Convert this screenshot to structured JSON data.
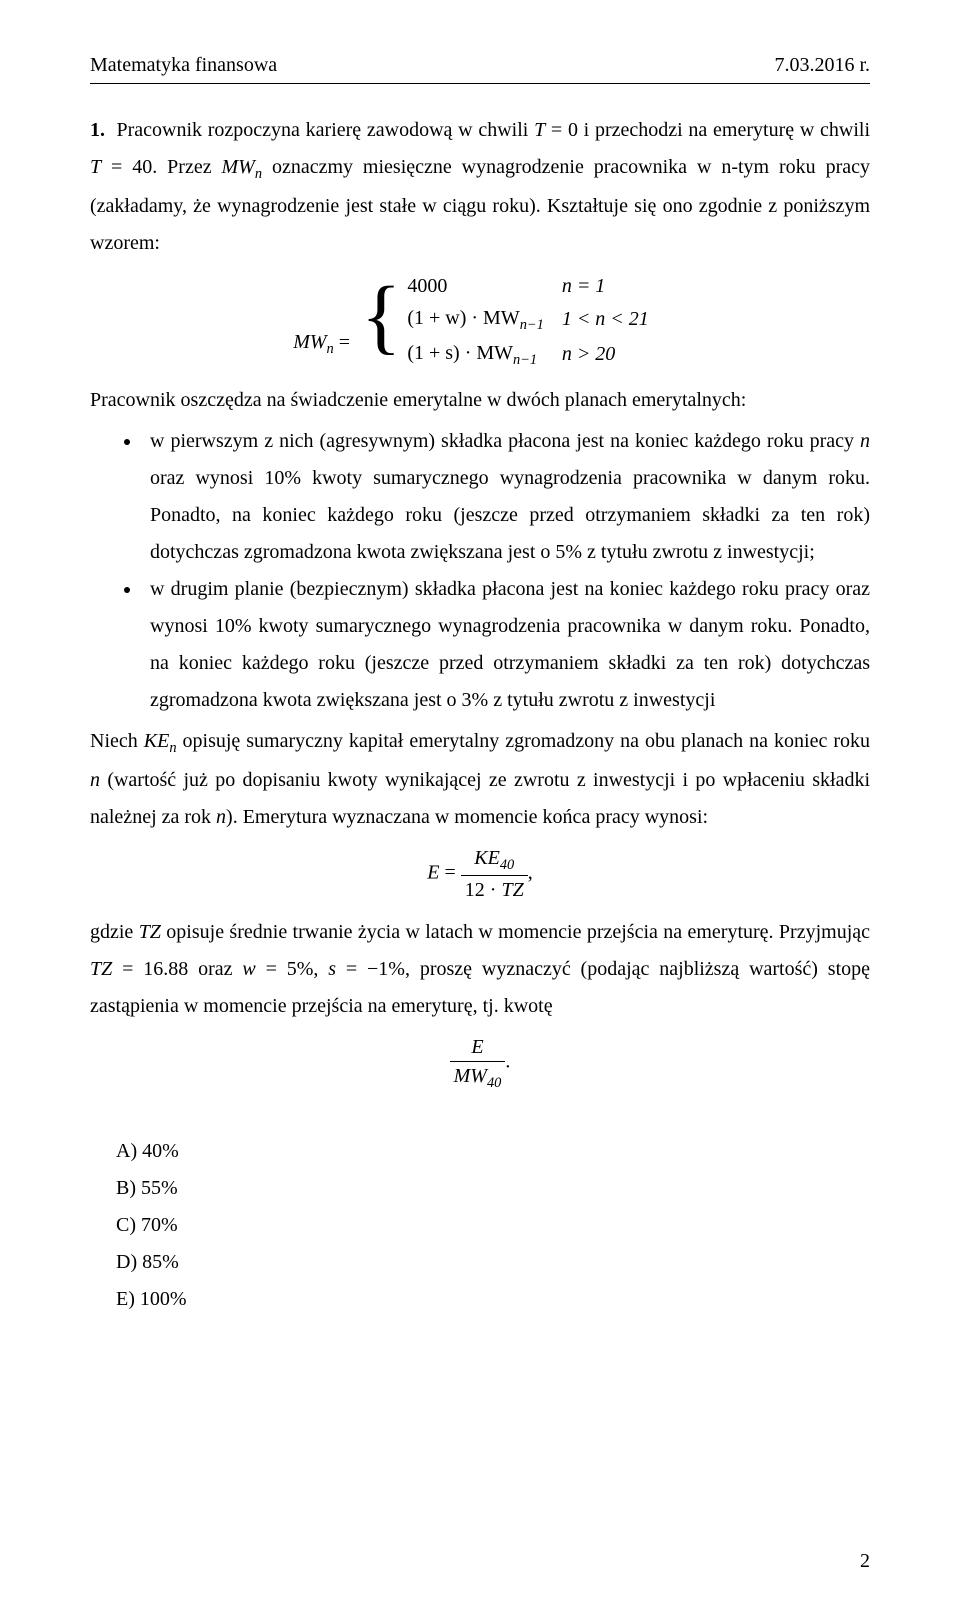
{
  "header": {
    "left": "Matematyka finansowa",
    "right": "7.03.2016 r."
  },
  "problem_number": "1.",
  "p1a": "Pracownik rozpoczyna karierę zawodową w chwili ",
  "p1_eq1_lhs": "T",
  "p1_eq1_rhs": " = 0",
  "p1b": " i przechodzi na emeryturę w chwili ",
  "p1_eq2_lhs": "T",
  "p1_eq2_rhs": " = 40",
  "p1c": ". Przez ",
  "mw_n": "MW",
  "p1d": " oznaczmy miesięczne wynagrodzenie pracownika w n-tym roku pracy (zakładamy, że wynagrodzenie jest stałe w ciągu roku). Kształtuje się ono zgodnie z poniższym wzorem:",
  "formula": {
    "lhs": "MW",
    "lhs_sub": "n",
    "eq": " = ",
    "rows": [
      {
        "expr": "4000",
        "cond": "n = 1"
      },
      {
        "expr": "(1 + w) · MW",
        "expr_sub": "n−1",
        "cond": "1 < n < 21"
      },
      {
        "expr": "(1 + s) · MW",
        "expr_sub": "n−1",
        "cond": "n > 20"
      }
    ]
  },
  "p2": "Pracownik oszczędza na świadczenie emerytalne w dwóch planach emerytalnych:",
  "bullet1a": "w pierwszym z nich (agresywnym) składka płacona jest na koniec każdego roku pracy ",
  "bullet1_n": "n",
  "bullet1b": " oraz wynosi 10% kwoty sumarycznego wynagrodzenia pracownika w danym roku. Ponadto, na koniec każdego roku (jeszcze przed otrzymaniem składki za ten rok) dotychczas zgromadzona kwota zwiększana jest o 5% z tytułu zwrotu z inwestycji;",
  "bullet2": "w drugim planie (bezpiecznym) składka płacona jest na koniec każdego roku pracy oraz wynosi 10% kwoty sumarycznego wynagrodzenia pracownika w danym roku. Ponadto, na koniec każdego roku (jeszcze przed otrzymaniem składki za ten rok) dotychczas zgromadzona kwota zwiększana jest o 3% z tytułu zwrotu z inwestycji",
  "p3a": "Niech ",
  "ke_n": "KE",
  "p3b": " opisuję sumaryczny kapitał emerytalny zgromadzony na obu planach na koniec roku ",
  "p3_n": "n",
  "p3c": " (wartość już po dopisaniu kwoty wynikającej ze zwrotu z inwestycji i po wpłaceniu składki należnej za rok ",
  "p3_n2": "n",
  "p3d": "). Emerytura wyznaczana w momencie końca pracy wynosi:",
  "formula2": {
    "lhs": "E",
    "eq": " = ",
    "num": "KE",
    "num_sub": "40",
    "den_a": "12 · ",
    "den_b": "TZ",
    "comma": ","
  },
  "p4a": "gdzie ",
  "tz": "TZ",
  "p4b": " opisuje średnie trwanie życia w latach w momencie przejścia na emeryturę. Przyjmując ",
  "p4_tz": "TZ",
  "p4_tz_val": " = 16.88",
  "p4c": " oraz ",
  "p4_w": "w",
  "p4_w_val": " = 5%",
  "p4d": ", ",
  "p4_s": "s",
  "p4_s_val": " = −1%",
  "p4e": ", proszę wyznaczyć (podając najbliższą wartość) stopę zastąpienia w momencie przejścia na emeryturę, tj. kwotę",
  "formula3": {
    "num": "E",
    "den": "MW",
    "den_sub": "40",
    "dot": "."
  },
  "answers": {
    "a": "A)  40%",
    "b": "B)  55%",
    "c": "C)  70%",
    "d": "D)  85%",
    "e": "E)  100%"
  },
  "page_number": "2"
}
